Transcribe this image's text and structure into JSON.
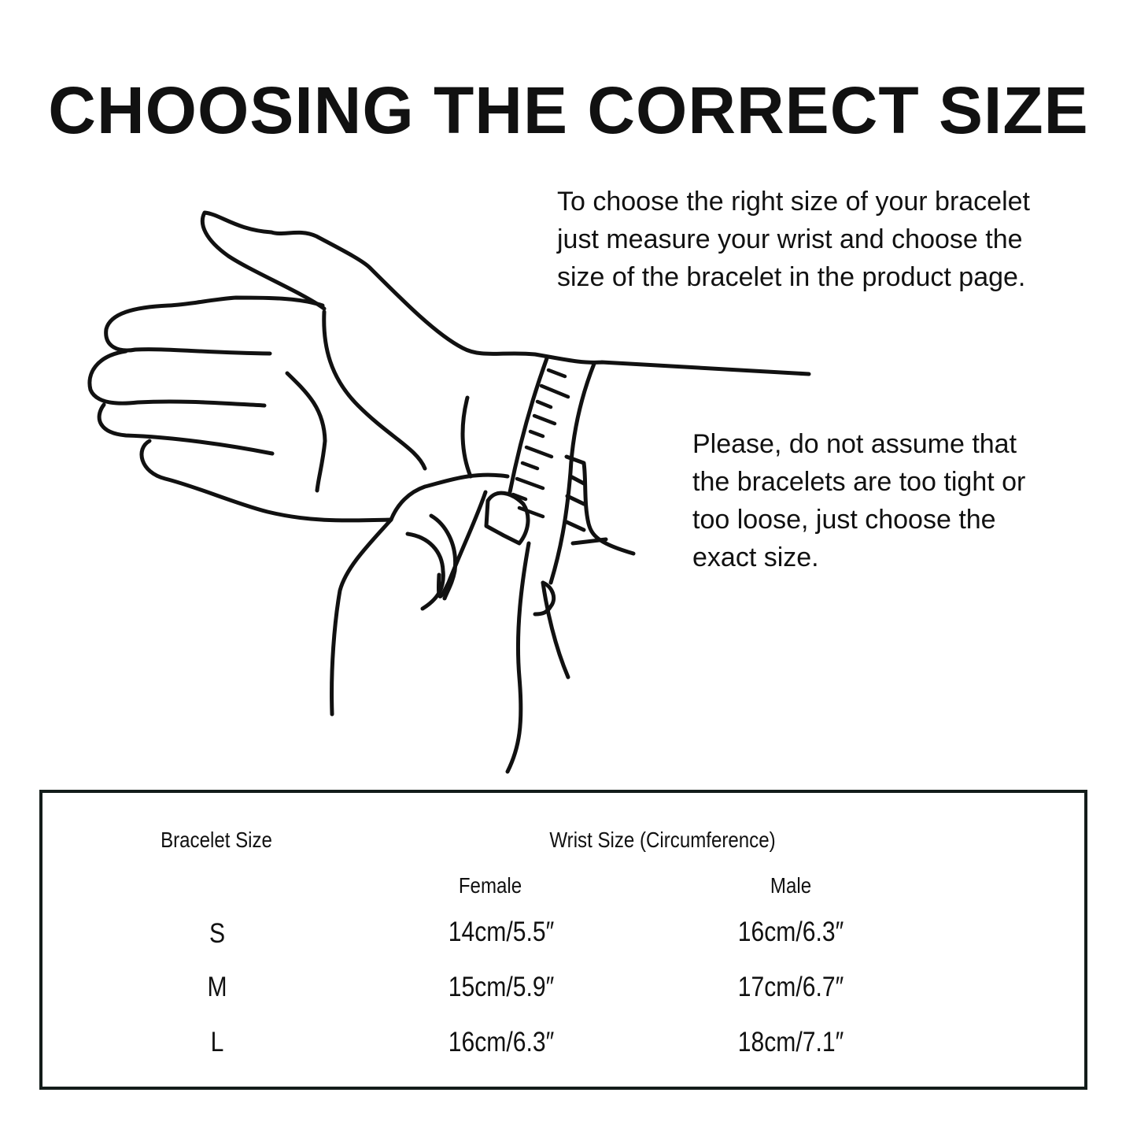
{
  "title": "CHOOSING THE CORRECT SIZE",
  "instructions": [
    "To choose the right size of your bracelet\njust measure your wrist and choose the\nsize of the bracelet in the product page.",
    "Please, do not assume that\nthe bracelets are too tight or\ntoo loose, just choose the\nexact size."
  ],
  "illustration": "hand-measuring-wrist-with-tape",
  "table": {
    "headers": {
      "bracelet_size": "Bracelet Size",
      "wrist_size": "Wrist Size (Circumference)",
      "female": "Female",
      "male": "Male"
    },
    "rows": [
      {
        "size": "S",
        "female": "14cm/5.5″",
        "male": "16cm/6.3″"
      },
      {
        "size": "M",
        "female": "15cm/5.9″",
        "male": "17cm/6.7″"
      },
      {
        "size": "L",
        "female": "16cm/6.3″",
        "male": "18cm/7.1″"
      }
    ],
    "border_color": "#131c1a"
  }
}
